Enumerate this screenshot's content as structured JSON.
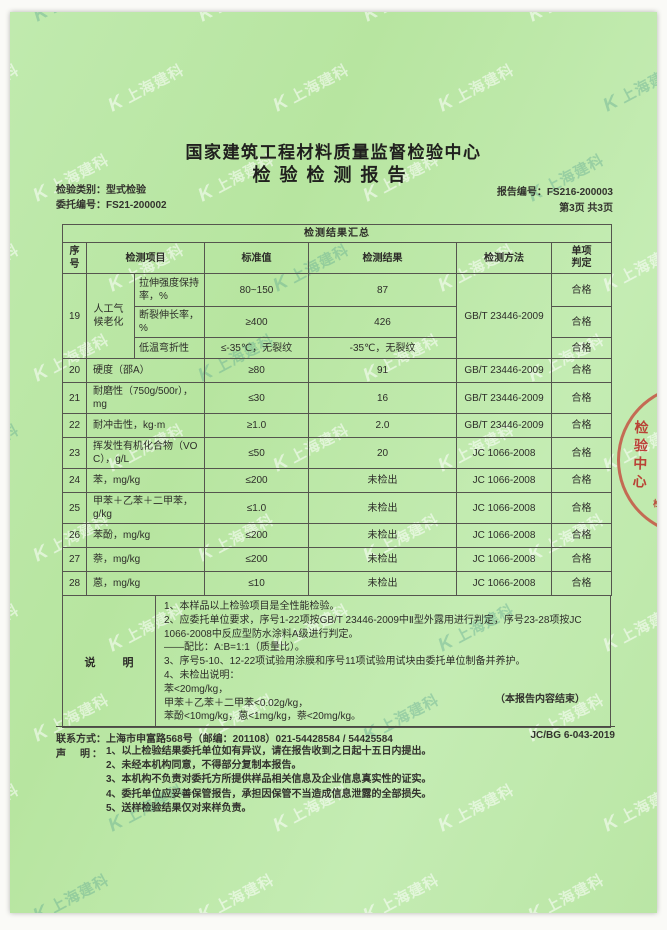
{
  "page": {
    "title_line1": "国家建筑工程材料质量监督检验中心",
    "title_line2": "检验检测报告",
    "meta": {
      "category_label": "检验类别：",
      "category_value": "型式检验",
      "entrust_label": "委托编号：",
      "entrust_value": "FS21-200002",
      "report_no_label": "报告编号：",
      "report_no_value": "FS216-200003",
      "page_info": "第3页 共3页"
    }
  },
  "watermark": {
    "logo": "K",
    "text": "上海建科"
  },
  "stamp": {
    "text": "检验中心",
    "sub": "检测"
  },
  "table": {
    "summary_title": "检测结果汇总",
    "headers": {
      "no": "序号",
      "item": "检测项目",
      "standard": "标准值",
      "result": "检测结果",
      "method": "检测方法",
      "judge": "单项判定"
    },
    "group19": {
      "no": "19",
      "item": "人工气候老化",
      "method": "GB/T 23446-2009",
      "subrows": [
        {
          "sub": "拉伸强度保持率，%",
          "standard": "80~150",
          "result": "87",
          "judge": "合格"
        },
        {
          "sub": "断裂伸长率，%",
          "standard": "≥400",
          "result": "426",
          "judge": "合格"
        },
        {
          "sub": "低温弯折性",
          "standard": "≤-35℃，无裂纹",
          "result": "-35℃，无裂纹",
          "judge": "合格"
        }
      ]
    },
    "rows": [
      {
        "no": "20",
        "item": "硬度（邵A）",
        "standard": "≥80",
        "result": "91",
        "method": "GB/T 23446-2009",
        "judge": "合格"
      },
      {
        "no": "21",
        "item": "耐磨性（750g/500r），mg",
        "standard": "≤30",
        "result": "16",
        "method": "GB/T 23446-2009",
        "judge": "合格"
      },
      {
        "no": "22",
        "item": "耐冲击性，kg·m",
        "standard": "≥1.0",
        "result": "2.0",
        "method": "GB/T 23446-2009",
        "judge": "合格"
      },
      {
        "no": "23",
        "item": "挥发性有机化合物（VOC），g/L",
        "standard": "≤50",
        "result": "20",
        "method": "JC 1066-2008",
        "judge": "合格"
      },
      {
        "no": "24",
        "item": "苯，mg/kg",
        "standard": "≤200",
        "result": "未检出",
        "method": "JC 1066-2008",
        "judge": "合格"
      },
      {
        "no": "25",
        "item": "甲苯＋乙苯＋二甲苯，g/kg",
        "standard": "≤1.0",
        "result": "未检出",
        "method": "JC 1066-2008",
        "judge": "合格"
      },
      {
        "no": "26",
        "item": "苯酚，mg/kg",
        "standard": "≤200",
        "result": "未检出",
        "method": "JC 1066-2008",
        "judge": "合格"
      },
      {
        "no": "27",
        "item": "萘，mg/kg",
        "standard": "≤200",
        "result": "未检出",
        "method": "JC 1066-2008",
        "judge": "合格"
      },
      {
        "no": "28",
        "item": "蒽，mg/kg",
        "standard": "≤10",
        "result": "未检出",
        "method": "JC 1066-2008",
        "judge": "合格"
      }
    ],
    "notes": {
      "label": "说　明",
      "lines": [
        "1、本样品以上检验项目是全性能检验。",
        "2、应委托单位要求，序号1-22项按GB/T 23446-2009中Ⅱ型外露用进行判定，序号23-28项按JC 1066-2008中反应型防水涂料A级进行判定。",
        "——配比：A:B=1:1（质量比）。",
        "3、序号5-10、12-22项试验用涂膜和序号11项试验用试块由委托单位制备并养护。",
        "4、未检出说明：",
        "苯<20mg/kg，",
        "甲苯＋乙苯＋二甲苯<0.02g/kg，",
        "苯酚<10mg/kg，蒽<1mg/kg，萘<20mg/kg。"
      ]
    },
    "end_note": "（本报告内容结束）"
  },
  "footer": {
    "contact": "联系方式：上海市申富路568号（邮编：201108）021-54428584 / 54425584",
    "doc_code": "JC/BG 6-043-2019",
    "statement_label": "声　明：",
    "statements": [
      "1、以上检验结果委托单位如有异议，请在报告收到之日起十五日内提出。",
      "2、未经本机构同意，不得部分复制本报告。",
      "3、本机构不负责对委托方所提供样品相关信息及企业信息真实性的证实。",
      "4、委托单位应妥善保管报告，承担因保管不当造成信息泄露的全部损失。",
      "5、送样检验结果仅对来样负责。"
    ]
  }
}
